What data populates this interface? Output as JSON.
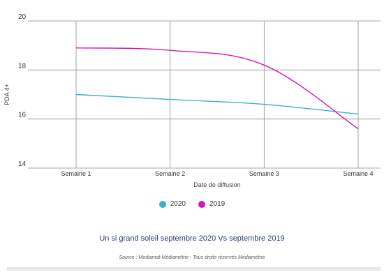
{
  "chart_data": {
    "type": "line",
    "title": "Un si grand soleil septembre 2020 Vs septembre 2019",
    "source": "Source : Mediamat-Médiamétrie - Tous droits réservés Médiamétrie",
    "xlabel": "Date de diffusion",
    "ylabel": "PDA 4+",
    "categories": [
      "Semaine 1",
      "Semaine 2",
      "Semaine 3",
      "Semaine 4"
    ],
    "ylim": [
      14,
      20
    ],
    "yticks": [
      14,
      16,
      18,
      20
    ],
    "grid": true,
    "legend_position": "bottom",
    "series": [
      {
        "name": "2020",
        "color": "#3ab0d0",
        "values": [
          17.0,
          16.8,
          16.6,
          16.2
        ]
      },
      {
        "name": "2019",
        "color": "#d417b8",
        "values": [
          18.9,
          18.8,
          18.2,
          15.6
        ]
      }
    ]
  }
}
